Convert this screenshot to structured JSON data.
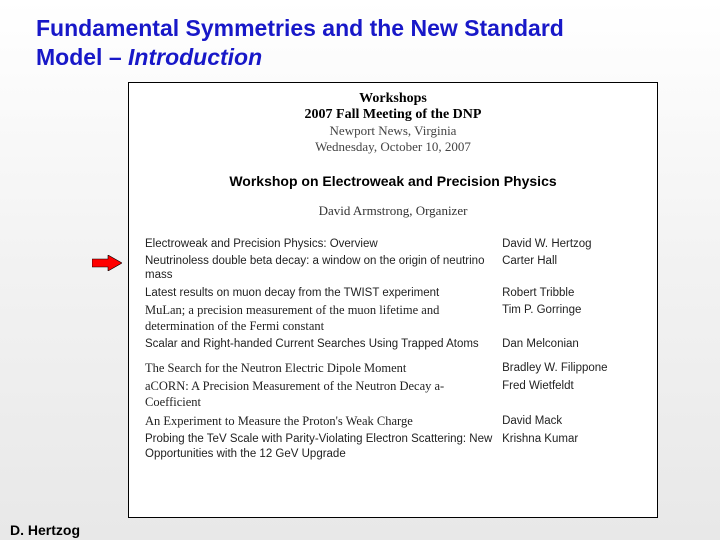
{
  "slide": {
    "title_main": "Fundamental Symmetries and the New Standard Model – ",
    "title_ital": "Introduction",
    "title_color": "#1818c8",
    "footer_author": "D. Hertzog"
  },
  "arrow": {
    "fill": "#ff0000",
    "stroke": "#000000"
  },
  "doc": {
    "header": {
      "line1": "Workshops",
      "line2": "2007 Fall Meeting of the DNP",
      "line3": "Newport News, Virginia",
      "line4": "Wednesday, October 10, 2007"
    },
    "workshop_title": "Workshop on Electroweak and Precision Physics",
    "organizer": "David Armstrong, Organizer",
    "talks": [
      {
        "title": "Electroweak and Precision Physics: Overview",
        "author": "David W. Hertzog",
        "serif": false
      },
      {
        "title": "Neutrinoless double beta decay: a window on the origin of neutrino mass",
        "author": "Carter Hall",
        "serif": false
      },
      {
        "title": "Latest results on muon decay from the TWIST experiment",
        "author": "Robert Tribble",
        "serif": false
      },
      {
        "title": "MuLan; a precision measurement of the muon lifetime and determination of the Fermi constant",
        "author": "Tim P. Gorringe",
        "serif": true
      },
      {
        "title": "Scalar and Right-handed Current Searches Using Trapped Atoms",
        "author": "Dan Melconian",
        "serif": false
      },
      {
        "title": "The Search for the Neutron Electric Dipole Moment",
        "author": "Bradley W. Filippone",
        "serif": true
      },
      {
        "title": "aCORN: A Precision Measurement of the Neutron Decay a-Coefficient",
        "author": "Fred Wietfeldt",
        "serif": true
      },
      {
        "title": "An Experiment to Measure the Proton's Weak Charge",
        "author": "David Mack",
        "serif": true
      },
      {
        "title": "Probing the TeV Scale with Parity-Violating Electron Scattering: New Opportunities with the 12 GeV Upgrade",
        "author": "Krishna Kumar",
        "serif": false
      }
    ]
  }
}
